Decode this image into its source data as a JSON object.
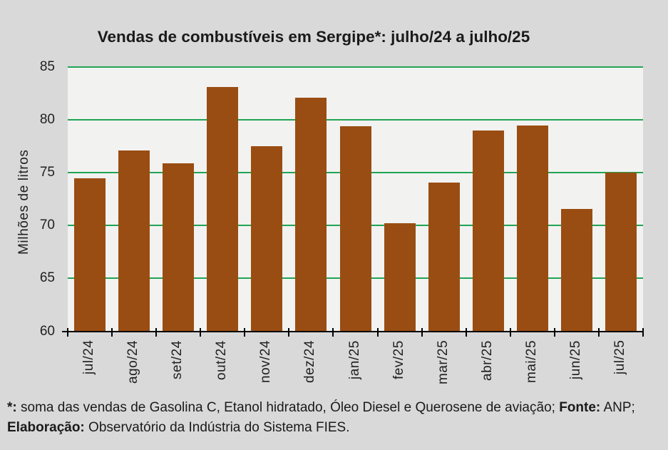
{
  "chart_data": {
    "type": "bar",
    "title": "Vendas de combustíveis em Sergipe*: julho/24 a julho/25",
    "ylabel": "Milhões de litros",
    "categories": [
      "jul/24",
      "ago/24",
      "set/24",
      "out/24",
      "nov/24",
      "dez/24",
      "jan/25",
      "fev/25",
      "mar/25",
      "abr/25",
      "mai/25",
      "jun/25",
      "jul/25"
    ],
    "values": [
      74.5,
      77.1,
      75.9,
      83.1,
      77.5,
      82.1,
      79.4,
      70.2,
      74.1,
      79.0,
      79.5,
      71.6,
      75.0
    ],
    "ylim": [
      60,
      85
    ],
    "yticks": [
      60,
      65,
      70,
      75,
      80,
      85
    ],
    "grid": true,
    "legend": "none",
    "colors": {
      "bar": "#9A4D12",
      "gridline": "#21A453",
      "axis": "#000000",
      "plot_bg": "#F2F2F1",
      "chart_bg": "#D9D9D9",
      "text": "#1F1F1F"
    }
  },
  "footer": {
    "lines": [
      {
        "segments": [
          {
            "text": "*:",
            "bold": true
          },
          {
            "text": " soma das vendas de Gasolina C, Etanol hidratado, Óleo Diesel e Querosene de aviação; ",
            "bold": false
          },
          {
            "text": "Fonte:",
            "bold": true
          },
          {
            "text": " ANP;",
            "bold": false
          }
        ]
      },
      {
        "segments": [
          {
            "text": "Elaboração:",
            "bold": true
          },
          {
            "text": " Observatório da Indústria do Sistema FIES.",
            "bold": false
          }
        ]
      }
    ]
  }
}
